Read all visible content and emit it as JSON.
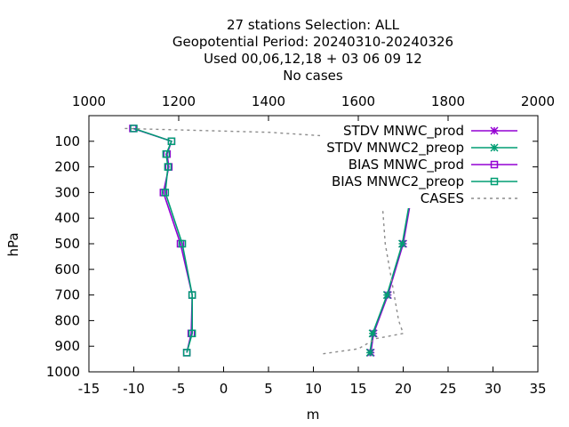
{
  "title_lines": [
    "27 stations Selection: ALL",
    "Geopotential  Period: 20240310-20240326",
    "Used  00,06,12,18 + 03 06 09 12",
    "No cases"
  ],
  "chart_data": {
    "type": "line",
    "xlabel": "m",
    "ylabel": "hPa",
    "xlim": [
      -15,
      35
    ],
    "x2lim": [
      1000,
      2000
    ],
    "ylim": [
      1000,
      0
    ],
    "xticks": [
      "-15",
      "-10",
      "-5",
      "0",
      "5",
      "10",
      "15",
      "20",
      "25",
      "30",
      "35"
    ],
    "x2ticks": [
      "1000",
      "1200",
      "1400",
      "1600",
      "1800",
      "2000"
    ],
    "yticks": [
      "100",
      "200",
      "300",
      "400",
      "500",
      "600",
      "700",
      "800",
      "900",
      "1000"
    ],
    "grid": false,
    "legend_position": "top-right",
    "series": [
      {
        "name": "STDV MNWC_prod",
        "color": "#9400d3",
        "marker": "x",
        "axis": "x1",
        "points": [
          [
            30.0,
            50
          ],
          [
            24.0,
            100
          ],
          [
            22.7,
            150
          ],
          [
            21.6,
            200
          ],
          [
            21.0,
            300
          ],
          [
            20.0,
            500
          ],
          [
            18.3,
            700
          ],
          [
            16.7,
            850
          ],
          [
            16.4,
            925
          ]
        ]
      },
      {
        "name": "STDV MNWC2_preop",
        "color": "#009e73",
        "marker": "x",
        "axis": "x1",
        "points": [
          [
            30.0,
            50
          ],
          [
            23.9,
            100
          ],
          [
            22.5,
            150
          ],
          [
            21.5,
            200
          ],
          [
            20.9,
            300
          ],
          [
            19.9,
            500
          ],
          [
            18.2,
            700
          ],
          [
            16.6,
            850
          ],
          [
            16.3,
            925
          ]
        ]
      },
      {
        "name": "BIAS MNWC_prod",
        "color": "#9400d3",
        "marker": "square",
        "axis": "x1",
        "points": [
          [
            -10.1,
            50
          ],
          [
            -5.8,
            100
          ],
          [
            -6.3,
            150
          ],
          [
            -6.1,
            200
          ],
          [
            -6.7,
            300
          ],
          [
            -4.8,
            500
          ],
          [
            -3.5,
            700
          ],
          [
            -3.6,
            850
          ],
          [
            -4.1,
            925
          ]
        ]
      },
      {
        "name": "BIAS MNWC2_preop",
        "color": "#009e73",
        "marker": "square",
        "axis": "x1",
        "points": [
          [
            -10.0,
            50
          ],
          [
            -5.8,
            100
          ],
          [
            -6.4,
            150
          ],
          [
            -6.2,
            200
          ],
          [
            -6.5,
            300
          ],
          [
            -4.6,
            500
          ],
          [
            -3.5,
            700
          ],
          [
            -3.5,
            850
          ],
          [
            -4.1,
            925
          ]
        ]
      },
      {
        "name": "CASES",
        "color": "#8c8c8c",
        "dashed": true,
        "axis": "x2",
        "points": [
          [
            1080,
            50
          ],
          [
            1400,
            65
          ],
          [
            1620,
            90
          ],
          [
            1625,
            100
          ],
          [
            1640,
            200
          ],
          [
            1650,
            260
          ],
          [
            1660,
            500
          ],
          [
            1690,
            800
          ],
          [
            1700,
            850
          ],
          [
            1640,
            870
          ],
          [
            1600,
            910
          ],
          [
            1520,
            930
          ]
        ]
      }
    ]
  }
}
